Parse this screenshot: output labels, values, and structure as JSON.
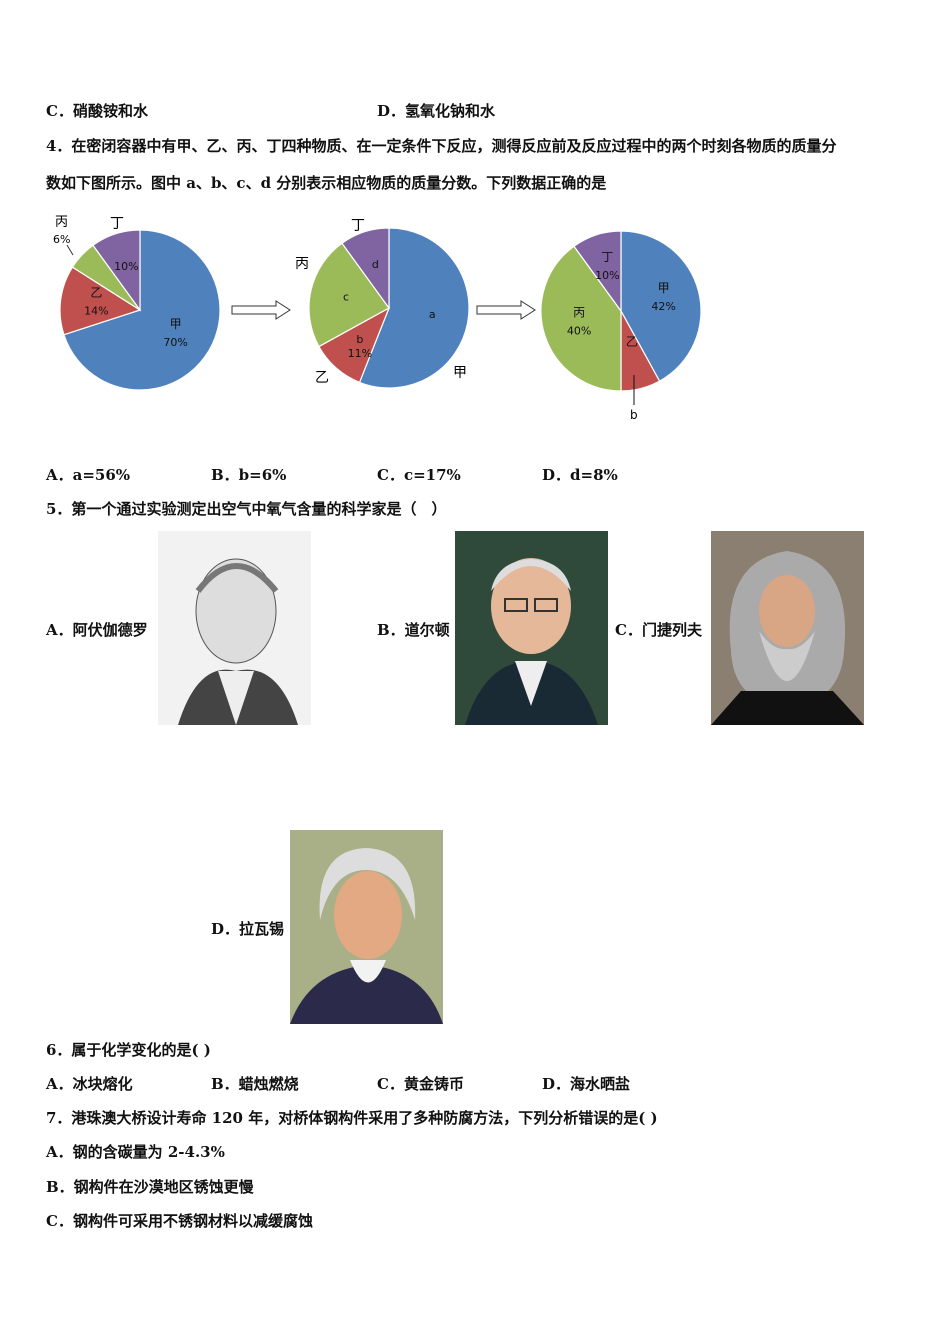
{
  "q3_options": {
    "c": "C．硝酸铵和水",
    "d": "D．氢氧化钠和水"
  },
  "q4": {
    "line1": "4．在密闭容器中有甲、乙、丙、丁四种物质、在一定条件下反应，测得反应前及反应过程中的两个时刻各物质的质量分",
    "line2": "数如下图所示。图中 a、b、c、d 分别表示相应物质的质量分数。下列数据正确的是",
    "options": [
      "A．a=56%",
      "B．b=6%",
      "C．c=17%",
      "D．d=8%"
    ]
  },
  "chart_data": [
    {
      "type": "pie",
      "start": "top",
      "direction": "clockwise",
      "slices": [
        {
          "name": "甲",
          "value": 70,
          "label": "70%",
          "color": "#4f81bd"
        },
        {
          "name": "乙",
          "value": 14,
          "label": "14%",
          "color": "#c0504d"
        },
        {
          "name": "丙",
          "value": 6,
          "label": "6%",
          "color": "#9bbb59"
        },
        {
          "name": "丁",
          "value": 10,
          "label": "10%",
          "color": "#8064a2"
        }
      ]
    },
    {
      "type": "pie",
      "start": "top",
      "direction": "clockwise",
      "slices": [
        {
          "name": "甲",
          "value": 56,
          "label": "a",
          "color": "#4f81bd"
        },
        {
          "name": "乙",
          "value": 11,
          "label": "b",
          "sublabel": "11%",
          "color": "#c0504d"
        },
        {
          "name": "丙",
          "value": 23,
          "label": "c",
          "color": "#9bbb59"
        },
        {
          "name": "丁",
          "value": 10,
          "label": "d",
          "color": "#8064a2"
        }
      ]
    },
    {
      "type": "pie",
      "start": "top",
      "direction": "clockwise",
      "slices": [
        {
          "name": "甲",
          "value": 42,
          "label": "42%",
          "color": "#4f81bd"
        },
        {
          "name": "乙",
          "value": 8,
          "label": "b",
          "color": "#c0504d"
        },
        {
          "name": "丙",
          "value": 40,
          "label": "40%",
          "color": "#9bbb59"
        },
        {
          "name": "丁",
          "value": 10,
          "label": "10%",
          "color": "#8064a2"
        }
      ]
    }
  ],
  "q5": {
    "question": "5．第一个通过实验测定出空气中氧气含量的科学家是（　）",
    "options": [
      "A．阿伏伽德罗",
      "B．道尔顿",
      "C．门捷列夫",
      "D．拉瓦锡"
    ]
  },
  "q6": {
    "question": "6．属于化学变化的是( )",
    "options": [
      "A．冰块熔化",
      "B．蜡烛燃烧",
      "C．黄金铸币",
      "D．海水晒盐"
    ]
  },
  "q7": {
    "question": "7．港珠澳大桥设计寿命 120 年，对桥体钢构件采用了多种防腐方法，下列分析错误的是( )",
    "options": [
      "A．钢的含碳量为 2-4.3%",
      "B．钢构件在沙漠地区锈蚀更慢",
      "C．钢构件可采用不锈钢材料以减缓腐蚀"
    ]
  }
}
